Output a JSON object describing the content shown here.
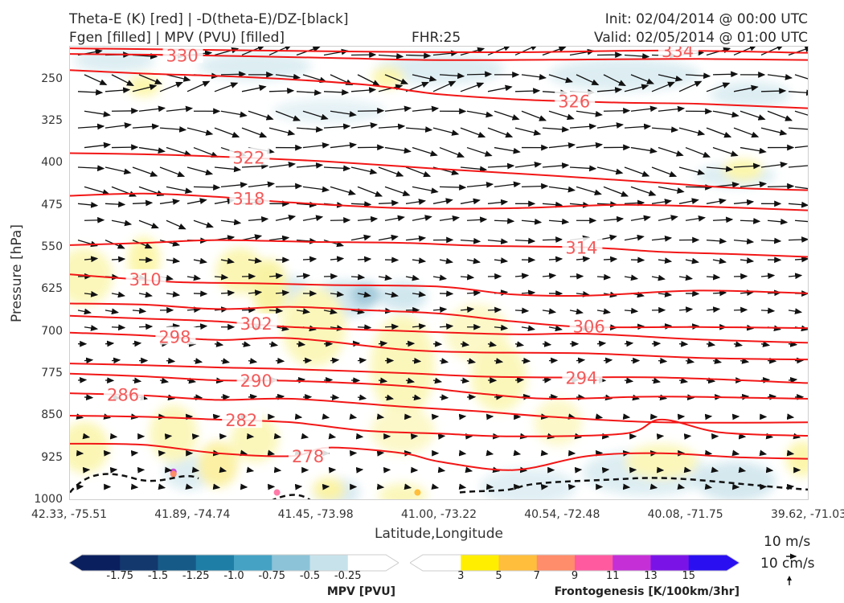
{
  "header": {
    "title_line1": "Theta-E (K) [red] | -D(theta-E)/DZ-[black]",
    "title_line2": "Fgen [filled] | MPV (PVU) [filled]",
    "fhr": "FHR:25",
    "init": "Init: 02/04/2014 @ 00:00 UTC",
    "valid": "Valid: 02/05/2014 @ 01:00 UTC"
  },
  "chart_data": {
    "type": "contour cross-section",
    "ylabel": "Pressure [hPa]",
    "xlabel": "Latitude,Longitude",
    "y_inverted": true,
    "ylim": [
      1000,
      190
    ],
    "y_ticks": [
      "250",
      "325",
      "400",
      "475",
      "550",
      "625",
      "700",
      "775",
      "850",
      "925",
      "1000"
    ],
    "x_ticks": [
      "42.33, -75.51",
      "41.89, -74.74",
      "41.45, -73.98",
      "41.00, -73.22",
      "40.54, -72.48",
      "40.08, -71.75",
      "39.62, -71.03"
    ],
    "theta_e_contours": [
      {
        "label": "334",
        "points": [
          [
            0,
            193
          ],
          [
            0.2,
            196
          ],
          [
            0.4,
            199
          ],
          [
            0.6,
            200
          ],
          [
            0.8,
            197
          ],
          [
            1.0,
            201
          ]
        ]
      },
      {
        "label": "330",
        "points": [
          [
            0,
            203
          ],
          [
            0.15,
            205
          ],
          [
            0.35,
            210
          ],
          [
            0.5,
            214
          ],
          [
            0.7,
            213
          ],
          [
            0.85,
            212
          ],
          [
            1.0,
            214
          ]
        ]
      },
      {
        "label": "326",
        "points": [
          [
            0,
            232
          ],
          [
            0.1,
            238
          ],
          [
            0.25,
            245
          ],
          [
            0.4,
            258
          ],
          [
            0.5,
            275
          ],
          [
            0.62,
            285
          ],
          [
            0.75,
            290
          ],
          [
            0.85,
            292
          ],
          [
            1.0,
            300
          ]
        ]
      },
      {
        "label": "322",
        "points": [
          [
            0,
            380
          ],
          [
            0.1,
            382
          ],
          [
            0.2,
            386
          ],
          [
            0.35,
            395
          ],
          [
            0.5,
            408
          ],
          [
            0.65,
            420
          ],
          [
            0.8,
            433
          ],
          [
            0.9,
            442
          ],
          [
            1.0,
            446
          ]
        ]
      },
      {
        "label": "318",
        "points": [
          [
            0,
            456
          ],
          [
            0.1,
            452
          ],
          [
            0.2,
            458
          ],
          [
            0.3,
            468
          ],
          [
            0.45,
            478
          ],
          [
            0.6,
            478
          ],
          [
            0.75,
            472
          ],
          [
            0.9,
            477
          ],
          [
            1.0,
            482
          ]
        ]
      },
      {
        "label": "314",
        "points": [
          [
            0,
            544
          ],
          [
            0.1,
            540
          ],
          [
            0.2,
            535
          ],
          [
            0.32,
            538
          ],
          [
            0.45,
            540
          ],
          [
            0.55,
            545
          ],
          [
            0.7,
            548
          ],
          [
            0.8,
            556
          ],
          [
            0.9,
            560
          ],
          [
            1.0,
            565
          ]
        ]
      },
      {
        "label": "310",
        "points": [
          [
            0,
            596
          ],
          [
            0.08,
            604
          ],
          [
            0.15,
            610
          ],
          [
            0.25,
            612
          ],
          [
            0.35,
            615
          ],
          [
            0.5,
            618
          ],
          [
            0.6,
            632
          ],
          [
            0.7,
            634
          ],
          [
            0.85,
            625
          ],
          [
            1.0,
            630
          ]
        ]
      },
      {
        "label": "306",
        "points": [
          [
            0,
            648
          ],
          [
            0.1,
            650
          ],
          [
            0.2,
            658
          ],
          [
            0.3,
            654
          ],
          [
            0.4,
            660
          ],
          [
            0.5,
            666
          ],
          [
            0.6,
            680
          ],
          [
            0.7,
            690
          ],
          [
            0.85,
            690
          ],
          [
            1.0,
            692
          ]
        ]
      },
      {
        "label": "302",
        "points": [
          [
            0,
            670
          ],
          [
            0.1,
            675
          ],
          [
            0.2,
            680
          ],
          [
            0.3,
            690
          ],
          [
            0.45,
            697
          ],
          [
            0.6,
            703
          ],
          [
            0.7,
            702
          ],
          [
            0.85,
            712
          ],
          [
            1.0,
            718
          ]
        ]
      },
      {
        "label": "298",
        "points": [
          [
            0,
            700
          ],
          [
            0.1,
            705
          ],
          [
            0.2,
            713
          ],
          [
            0.3,
            710
          ],
          [
            0.45,
            730
          ],
          [
            0.55,
            735
          ],
          [
            0.7,
            737
          ],
          [
            0.85,
            745
          ],
          [
            1.0,
            748
          ]
        ]
      },
      {
        "label": "294",
        "points": [
          [
            0,
            755
          ],
          [
            0.1,
            758
          ],
          [
            0.2,
            762
          ],
          [
            0.3,
            765
          ],
          [
            0.45,
            772
          ],
          [
            0.55,
            778
          ],
          [
            0.65,
            780
          ],
          [
            0.8,
            780
          ],
          [
            1.0,
            790
          ]
        ]
      },
      {
        "label": "290",
        "points": [
          [
            0,
            773
          ],
          [
            0.1,
            778
          ],
          [
            0.2,
            785
          ],
          [
            0.3,
            786
          ],
          [
            0.45,
            795
          ],
          [
            0.55,
            808
          ],
          [
            0.65,
            818
          ],
          [
            0.8,
            814
          ],
          [
            1.0,
            818
          ]
        ]
      },
      {
        "label": "286",
        "points": [
          [
            0,
            808
          ],
          [
            0.1,
            812
          ],
          [
            0.2,
            820
          ],
          [
            0.3,
            818
          ],
          [
            0.45,
            832
          ],
          [
            0.55,
            840
          ],
          [
            0.65,
            850
          ],
          [
            0.8,
            860
          ],
          [
            1.0,
            860
          ]
        ]
      },
      {
        "label": "282",
        "points": [
          [
            0,
            848
          ],
          [
            0.1,
            850
          ],
          [
            0.2,
            855
          ],
          [
            0.3,
            860
          ],
          [
            0.4,
            875
          ],
          [
            0.5,
            880
          ],
          [
            0.6,
            885
          ],
          [
            0.75,
            880
          ],
          [
            0.8,
            855
          ],
          [
            0.88,
            878
          ],
          [
            1.0,
            884
          ]
        ]
      },
      {
        "label": "278",
        "points": [
          [
            0,
            898
          ],
          [
            0.1,
            900
          ],
          [
            0.2,
            915
          ],
          [
            0.3,
            920
          ],
          [
            0.35,
            905
          ],
          [
            0.45,
            915
          ],
          [
            0.5,
            930
          ],
          [
            0.6,
            945
          ],
          [
            0.7,
            920
          ],
          [
            0.8,
            915
          ],
          [
            0.9,
            922
          ],
          [
            1.0,
            925
          ]
        ]
      }
    ],
    "colorbars": [
      {
        "title": "MPV [PVU]",
        "ticks": [
          "-1.75",
          "-1.5",
          "-1.25",
          "-1.0",
          "-0.75",
          "-0.5",
          "-0.25"
        ],
        "colors": [
          "#0a1f5e",
          "#12386e",
          "#165b88",
          "#1f7ea6",
          "#45a2c5",
          "#8cc3d8",
          "#c7e2ea",
          "#ffffff"
        ]
      },
      {
        "title": "Frontogenesis [K/100km/3hr]",
        "ticks": [
          "3",
          "5",
          "7",
          "9",
          "11",
          "13",
          "15"
        ],
        "colors": [
          "#ffffff",
          "#ffee00",
          "#ffbe3c",
          "#ff8c6a",
          "#ff5aa0",
          "#c430d6",
          "#7a14e6",
          "#2a10f0"
        ]
      }
    ],
    "vector_reference": {
      "label_1": "10 m/s",
      "label_2": "10 cm/s"
    }
  }
}
